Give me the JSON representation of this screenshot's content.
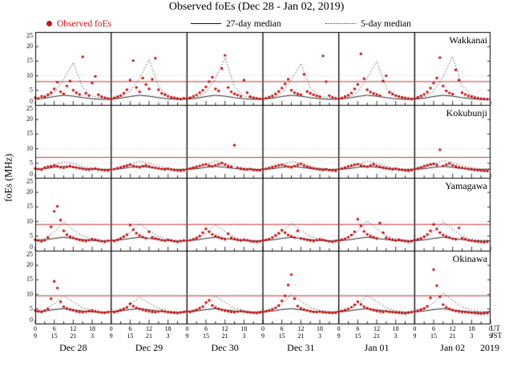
{
  "title": "Observed foEs (Dec 28 - Jan 02, 2019)",
  "legend": {
    "observed": "Observed foEs",
    "median27": "27-day median",
    "median5": "5-day median"
  },
  "axis": {
    "ylabel": "foEs (MHz)",
    "ylim": [
      0,
      25
    ],
    "yticks": [
      0,
      5,
      10,
      15,
      20,
      25
    ],
    "x_hours_total": 144,
    "xticks_ut": [
      "0",
      "6",
      "12",
      "18",
      "0",
      "6",
      "12",
      "18",
      "0",
      "6",
      "12",
      "18",
      "0",
      "6",
      "12",
      "18",
      "0",
      "6",
      "12",
      "18",
      "0",
      "6",
      "12",
      "18",
      "0"
    ],
    "xticks_jst": [
      "9",
      "15",
      "21",
      "3",
      "9",
      "15",
      "21",
      "3",
      "9",
      "15",
      "21",
      "3",
      "9",
      "15",
      "21",
      "3",
      "9",
      "15",
      "21",
      "3",
      "9",
      "15",
      "21",
      "3",
      "9"
    ],
    "ut_label": "UT",
    "jst_label": "JST",
    "days": [
      "Dec 28",
      "Dec 29",
      "Dec 30",
      "Dec 31",
      "Jan 01",
      "Jan 02"
    ],
    "year": "2019"
  },
  "colors": {
    "observed": "#cc1111",
    "threshold": "#cc3333",
    "median27": "#111111",
    "median5": "#444444",
    "grid": "rgba(0,0,0,0.28)"
  },
  "chart_data": [
    {
      "type": "scatter",
      "station": "Wakkanai",
      "threshold_mhz": 8,
      "observed": {
        "x_start": 0,
        "x_step_hours": 1,
        "values": [
          2.5,
          2.2,
          3.0,
          2.8,
          3.5,
          4.2,
          5.5,
          7.8,
          4.5,
          3.8,
          6.5,
          8.2,
          5.0,
          4.2,
          3.6,
          16.5,
          4.0,
          3.2,
          7.5,
          9.8,
          3.5,
          2.8,
          2.5,
          2.2,
          2.0,
          2.4,
          2.8,
          3.2,
          4.0,
          5.2,
          8.5,
          15.2,
          6.0,
          4.5,
          9.2,
          7.0,
          5.5,
          8.8,
          16.0,
          5.2,
          4.0,
          3.5,
          3.0,
          2.6,
          2.4,
          2.2,
          2.0,
          2.3,
          2.2,
          2.5,
          3.0,
          3.4,
          4.2,
          5.0,
          6.2,
          8.0,
          9.5,
          5.5,
          4.8,
          12.5,
          17.0,
          6.0,
          4.5,
          3.8,
          3.4,
          3.0,
          8.5,
          4.2,
          2.8,
          2.5,
          2.3,
          2.1,
          2.0,
          2.3,
          2.7,
          3.1,
          3.8,
          4.6,
          5.8,
          7.2,
          8.8,
          5.0,
          4.2,
          3.8,
          3.5,
          10.5,
          4.6,
          4.0,
          3.5,
          3.1,
          2.8,
          16.8,
          8.0,
          3.2,
          2.6,
          2.3,
          2.1,
          2.4,
          2.9,
          3.3,
          4.1,
          5.5,
          7.0,
          17.5,
          9.0,
          5.2,
          4.4,
          3.9,
          3.6,
          3.2,
          8.2,
          10.0,
          4.3,
          3.7,
          3.2,
          2.9,
          2.6,
          2.4,
          2.2,
          2.0,
          2.2,
          2.6,
          3.1,
          3.6,
          4.4,
          5.8,
          7.5,
          9.2,
          16.2,
          6.5,
          4.8,
          4.1,
          3.7,
          12.0,
          8.5,
          4.2,
          3.6,
          3.1,
          2.8,
          2.5,
          2.3,
          2.1,
          2.0,
          1.9
        ]
      },
      "median_27day": {
        "x_start": 0,
        "x_step_hours": 3,
        "values": [
          2.0,
          2.3,
          2.9,
          3.3,
          3.0,
          2.5,
          2.1,
          1.9,
          2.0,
          2.3,
          2.9,
          3.3,
          3.0,
          2.5,
          2.1,
          1.9,
          2.0,
          2.3,
          2.9,
          3.3,
          3.0,
          2.5,
          2.1,
          1.9,
          2.0,
          2.3,
          2.9,
          3.3,
          3.0,
          2.5,
          2.1,
          1.9,
          2.0,
          2.3,
          2.9,
          3.3,
          3.0,
          2.5,
          2.1,
          1.9,
          2.0,
          2.3,
          2.9,
          3.3,
          3.0,
          2.5,
          2.1,
          1.9,
          2.0
        ]
      },
      "median_5day": {
        "x_start": 0,
        "x_step_hours": 3,
        "values": [
          2.2,
          2.6,
          4.2,
          8.8,
          14.5,
          6.0,
          3.0,
          2.4,
          2.2,
          2.7,
          4.6,
          9.2,
          15.5,
          6.4,
          3.1,
          2.5,
          2.3,
          2.6,
          4.3,
          8.9,
          16.2,
          6.2,
          3.0,
          2.4,
          2.2,
          2.5,
          4.1,
          8.6,
          14.2,
          5.9,
          2.9,
          2.4,
          2.2,
          2.6,
          4.4,
          9.3,
          15.0,
          6.1,
          3.0,
          2.4,
          2.3,
          2.7,
          4.6,
          9.6,
          16.6,
          6.6,
          3.2,
          2.5,
          2.3
        ]
      }
    },
    {
      "type": "scatter",
      "station": "Kokubunji",
      "threshold_mhz": 7,
      "observed": {
        "x_start": 0,
        "x_step_hours": 1,
        "values": [
          3.2,
          3.0,
          2.8,
          3.5,
          3.8,
          4.0,
          4.2,
          3.9,
          3.6,
          3.4,
          3.8,
          4.1,
          3.7,
          3.5,
          3.3,
          3.1,
          2.9,
          2.8,
          3.0,
          3.2,
          2.9,
          2.7,
          2.6,
          2.5,
          2.8,
          3.0,
          3.3,
          3.6,
          3.9,
          4.2,
          4.5,
          4.1,
          3.8,
          3.6,
          4.0,
          4.3,
          3.9,
          3.6,
          3.4,
          3.2,
          3.0,
          2.9,
          3.1,
          2.8,
          2.6,
          2.5,
          2.4,
          2.6,
          3.0,
          3.2,
          3.5,
          3.8,
          4.1,
          4.4,
          4.6,
          4.2,
          3.9,
          4.3,
          4.7,
          5.0,
          4.5,
          4.0,
          3.7,
          11.2,
          3.4,
          3.1,
          2.9,
          2.8,
          3.0,
          2.7,
          2.6,
          2.5,
          2.9,
          3.1,
          3.4,
          3.7,
          4.0,
          4.3,
          4.5,
          4.1,
          3.8,
          3.6,
          4.0,
          4.4,
          4.8,
          4.2,
          3.8,
          3.5,
          3.2,
          3.0,
          2.8,
          2.7,
          2.9,
          2.6,
          2.5,
          2.4,
          3.0,
          3.2,
          3.5,
          3.9,
          4.2,
          4.5,
          4.7,
          4.3,
          4.0,
          3.8,
          4.2,
          4.6,
          4.1,
          3.8,
          3.5,
          3.3,
          3.1,
          2.9,
          3.1,
          2.8,
          2.7,
          2.5,
          2.4,
          2.6,
          3.1,
          3.3,
          3.6,
          4.0,
          4.3,
          4.6,
          4.8,
          4.4,
          9.6,
          4.1,
          4.5,
          4.9,
          4.3,
          3.9,
          3.6,
          3.4,
          3.2,
          3.0,
          2.9,
          2.7,
          2.6,
          2.5,
          2.4,
          2.3
        ]
      },
      "median_27day": {
        "x_start": 0,
        "x_step_hours": 3,
        "values": [
          2.9,
          3.1,
          3.6,
          3.9,
          3.6,
          3.2,
          3.0,
          2.8,
          2.9,
          3.1,
          3.6,
          3.9,
          3.6,
          3.2,
          3.0,
          2.8,
          2.9,
          3.1,
          3.6,
          3.9,
          3.6,
          3.2,
          3.0,
          2.8,
          2.9,
          3.1,
          3.6,
          3.9,
          3.6,
          3.2,
          3.0,
          2.8,
          2.9,
          3.1,
          3.6,
          3.9,
          3.6,
          3.2,
          3.0,
          2.8,
          2.9,
          3.1,
          3.6,
          3.9,
          3.6,
          3.2,
          3.0,
          2.8,
          2.9
        ]
      },
      "median_5day": {
        "x_start": 0,
        "x_step_hours": 3,
        "values": [
          3.0,
          3.4,
          4.4,
          5.5,
          4.9,
          3.9,
          3.3,
          3.0,
          3.0,
          3.4,
          4.5,
          5.7,
          5.0,
          4.0,
          3.3,
          3.0,
          3.1,
          3.5,
          4.6,
          5.8,
          5.1,
          4.0,
          3.4,
          3.1,
          3.0,
          3.4,
          4.4,
          5.6,
          5.0,
          3.9,
          3.3,
          3.0,
          3.0,
          3.4,
          4.5,
          5.7,
          5.0,
          4.0,
          3.3,
          3.0,
          3.1,
          3.5,
          4.6,
          5.9,
          5.2,
          4.1,
          3.4,
          3.1,
          3.1
        ]
      }
    },
    {
      "type": "scatter",
      "station": "Yamagawa",
      "threshold_mhz": 9,
      "observed": {
        "x_start": 0,
        "x_step_hours": 1,
        "values": [
          3.8,
          3.5,
          3.2,
          3.6,
          4.5,
          8.2,
          13.5,
          15.2,
          10.5,
          6.8,
          5.5,
          4.8,
          4.4,
          4.0,
          3.7,
          3.5,
          3.3,
          3.6,
          4.0,
          3.8,
          3.5,
          3.2,
          3.0,
          3.4,
          3.6,
          3.3,
          3.7,
          4.2,
          4.8,
          5.5,
          8.8,
          7.2,
          6.0,
          5.2,
          4.7,
          4.3,
          6.5,
          4.6,
          4.2,
          3.9,
          3.6,
          3.4,
          3.7,
          3.5,
          3.2,
          3.0,
          3.3,
          3.5,
          3.4,
          3.6,
          3.9,
          4.4,
          5.0,
          6.2,
          7.5,
          6.5,
          5.6,
          5.0,
          4.6,
          4.2,
          3.9,
          5.8,
          4.4,
          4.0,
          3.7,
          3.5,
          3.8,
          3.6,
          3.3,
          3.1,
          3.0,
          3.2,
          3.5,
          3.7,
          4.0,
          4.5,
          5.2,
          6.0,
          7.0,
          6.2,
          5.4,
          4.9,
          4.5,
          6.8,
          4.2,
          3.9,
          3.7,
          3.5,
          3.3,
          3.6,
          3.9,
          3.7,
          3.4,
          3.2,
          3.0,
          3.3,
          3.6,
          3.8,
          4.1,
          4.6,
          5.4,
          6.5,
          10.8,
          8.5,
          6.6,
          5.6,
          5.0,
          4.6,
          4.2,
          9.5,
          6.2,
          4.4,
          4.0,
          3.7,
          3.5,
          3.8,
          3.5,
          3.3,
          3.1,
          3.2,
          3.7,
          3.9,
          4.2,
          4.8,
          5.6,
          6.8,
          9.0,
          7.4,
          6.2,
          5.4,
          4.9,
          4.5,
          4.1,
          3.9,
          7.8,
          4.3,
          3.9,
          3.6,
          3.4,
          3.2,
          3.1,
          3.0,
          2.9,
          3.0
        ]
      },
      "median_27day": {
        "x_start": 0,
        "x_step_hours": 3,
        "values": [
          3.4,
          3.7,
          4.2,
          4.6,
          4.2,
          3.8,
          3.5,
          3.3,
          3.4,
          3.7,
          4.2,
          4.6,
          4.2,
          3.8,
          3.5,
          3.3,
          3.4,
          3.7,
          4.2,
          4.6,
          4.2,
          3.8,
          3.5,
          3.3,
          3.4,
          3.7,
          4.2,
          4.6,
          4.2,
          3.8,
          3.5,
          3.3,
          3.4,
          3.7,
          4.2,
          4.6,
          4.2,
          3.8,
          3.5,
          3.3,
          3.4,
          3.7,
          4.2,
          4.6,
          4.2,
          3.8,
          3.5,
          3.3,
          3.4
        ]
      },
      "median_5day": {
        "x_start": 0,
        "x_step_hours": 3,
        "values": [
          3.6,
          4.2,
          6.5,
          9.8,
          7.2,
          5.0,
          4.0,
          3.6,
          3.6,
          4.1,
          6.2,
          9.2,
          6.9,
          4.8,
          3.9,
          3.5,
          3.5,
          4.0,
          6.0,
          8.8,
          6.6,
          4.7,
          3.8,
          3.5,
          3.6,
          4.1,
          6.3,
          9.4,
          7.0,
          4.9,
          3.9,
          3.5,
          3.7,
          4.3,
          6.8,
          10.2,
          7.5,
          5.1,
          4.0,
          3.6,
          3.7,
          4.2,
          6.6,
          9.9,
          7.3,
          5.0,
          4.0,
          3.6,
          3.6
        ]
      }
    },
    {
      "type": "scatter",
      "station": "Okinawa",
      "threshold_mhz": 9.5,
      "observed": {
        "x_start": 0,
        "x_step_hours": 1,
        "values": [
          4.5,
          4.2,
          4.0,
          4.4,
          5.0,
          8.5,
          14.5,
          12.2,
          7.5,
          5.8,
          5.2,
          4.8,
          4.5,
          4.2,
          4.0,
          3.9,
          4.1,
          4.3,
          4.5,
          4.2,
          4.0,
          3.8,
          3.7,
          3.9,
          4.1,
          3.9,
          4.2,
          4.6,
          5.0,
          5.5,
          6.8,
          6.0,
          5.4,
          5.0,
          4.7,
          4.4,
          4.2,
          4.0,
          3.9,
          4.1,
          4.3,
          4.1,
          3.9,
          3.8,
          3.7,
          3.6,
          3.8,
          4.0,
          4.2,
          4.0,
          4.3,
          4.7,
          5.2,
          5.8,
          7.2,
          8.0,
          6.2,
          5.5,
          5.0,
          4.7,
          4.4,
          4.2,
          4.0,
          3.9,
          4.1,
          4.3,
          4.1,
          3.9,
          3.8,
          3.7,
          3.6,
          3.8,
          4.0,
          4.2,
          4.5,
          4.9,
          5.4,
          6.2,
          7.8,
          9.5,
          13.2,
          16.8,
          8.5,
          6.0,
          5.2,
          4.8,
          4.5,
          4.2,
          4.0,
          3.9,
          4.1,
          3.9,
          3.8,
          3.7,
          3.6,
          3.7,
          4.1,
          4.3,
          4.6,
          5.0,
          5.6,
          6.4,
          7.5,
          6.6,
          5.8,
          5.3,
          4.9,
          4.6,
          4.3,
          4.1,
          4.0,
          4.2,
          4.0,
          3.9,
          3.8,
          3.7,
          3.6,
          3.5,
          3.7,
          3.9,
          4.2,
          4.4,
          4.8,
          5.2,
          5.9,
          8.8,
          18.5,
          13.0,
          9.2,
          6.5,
          5.6,
          5.0,
          4.6,
          4.3,
          4.1,
          4.0,
          3.9,
          3.8,
          3.7,
          3.6,
          3.5,
          3.4,
          3.5,
          3.6
        ]
      },
      "median_27day": {
        "x_start": 0,
        "x_step_hours": 3,
        "values": [
          4.0,
          4.3,
          4.8,
          5.1,
          4.7,
          4.3,
          4.0,
          3.8,
          4.0,
          4.3,
          4.8,
          5.1,
          4.7,
          4.3,
          4.0,
          3.8,
          4.0,
          4.3,
          4.8,
          5.1,
          4.7,
          4.3,
          4.0,
          3.8,
          4.0,
          4.3,
          4.8,
          5.1,
          4.7,
          4.3,
          4.0,
          3.8,
          4.0,
          4.3,
          4.8,
          5.1,
          4.7,
          4.3,
          4.0,
          3.8,
          4.0,
          4.3,
          4.8,
          5.1,
          4.7,
          4.3,
          4.0,
          3.8,
          4.0
        ]
      },
      "median_5day": {
        "x_start": 0,
        "x_step_hours": 3,
        "values": [
          4.2,
          4.8,
          6.8,
          9.5,
          7.4,
          5.4,
          4.4,
          4.0,
          4.1,
          4.7,
          6.5,
          9.0,
          7.1,
          5.2,
          4.3,
          4.0,
          4.2,
          4.8,
          6.7,
          9.3,
          7.3,
          5.3,
          4.4,
          4.0,
          4.3,
          4.9,
          7.0,
          9.9,
          7.7,
          5.5,
          4.5,
          4.1,
          4.2,
          4.8,
          6.8,
          9.6,
          7.5,
          5.4,
          4.4,
          4.0,
          4.3,
          5.0,
          7.2,
          10.4,
          8.0,
          5.7,
          4.6,
          4.1,
          4.2
        ]
      }
    }
  ]
}
